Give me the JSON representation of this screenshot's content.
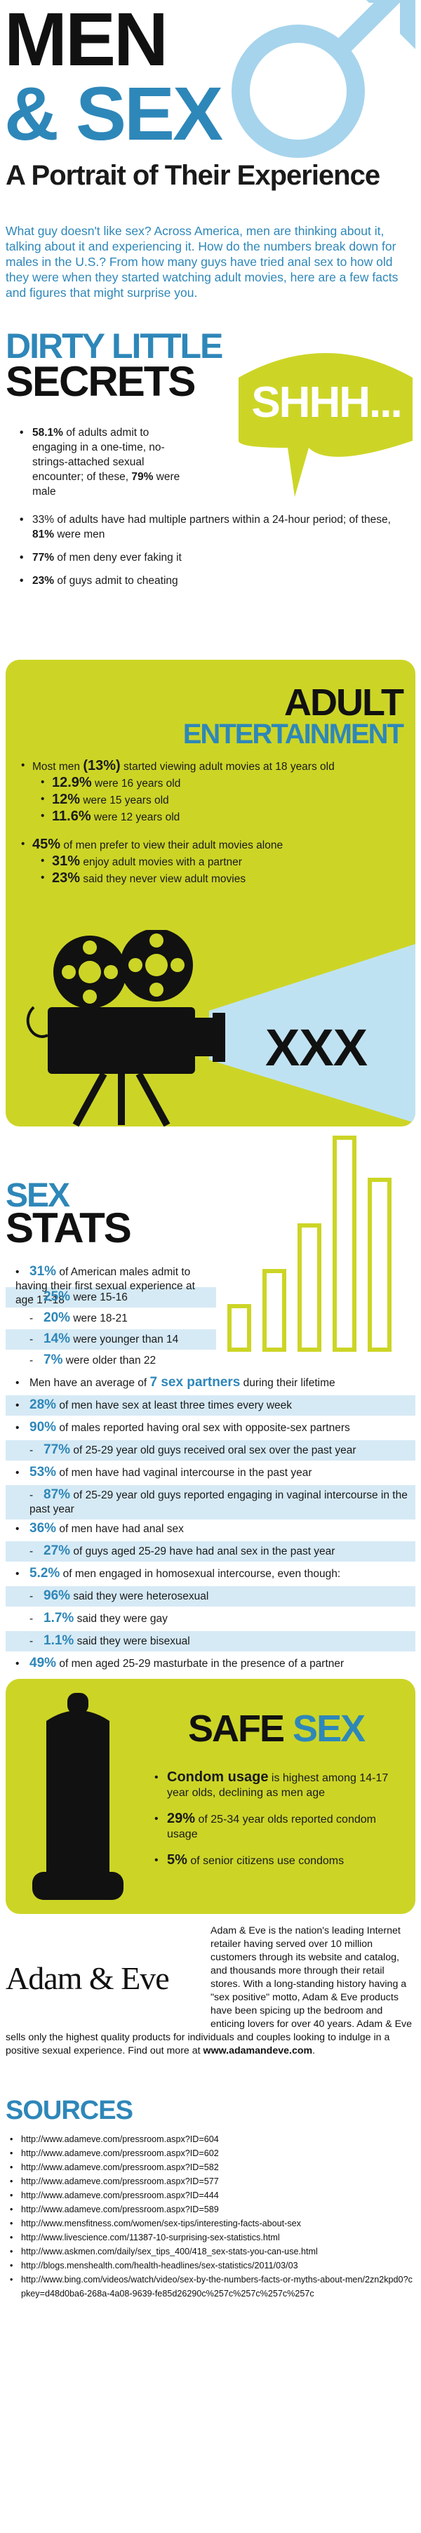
{
  "header": {
    "title_line1": "MEN",
    "title_line2": "& SEX",
    "subtitle": "A Portrait of Their Experience",
    "intro": "What guy doesn't like sex? Across America, men are thinking about it, talking about it and experiencing it. How do the numbers break down for males in the U.S.? From how many guys have tried anal sex to how old they were when they started watching adult movies, here are a few facts and figures that might surprise you.",
    "icon": "male-symbol-icon"
  },
  "colors": {
    "blue": "#2e87b9",
    "lime": "#ccd526",
    "light_blue": "#d6eaf5",
    "dark": "#111111"
  },
  "dirty": {
    "heading1": "DIRTY LITTLE",
    "heading2": "SECRETS",
    "bubble": "SHHH...",
    "item1": {
      "pct": "58.1%",
      "text_a": " of adults admit to engaging in a one-time, no-strings-attached sexual encounter; of these, ",
      "pct2": "79%",
      "text_b": " were male"
    },
    "item2": {
      "text_a": "33% of adults have had multiple partners within a 24-hour period; of these, ",
      "pct": "81%",
      "text_b": " were men"
    },
    "item3": {
      "pct": "77%",
      "text": " of men deny ever faking it"
    },
    "item4": {
      "pct": "23%",
      "text": " of guys admit to cheating"
    }
  },
  "adult": {
    "heading1": "ADULT",
    "heading2": "ENTERTAINMENT",
    "items": {
      "main1_a": "Most men ",
      "main1_pct": "(13%)",
      "main1_b": " started viewing adult movies at 18 years old",
      "s1_pct": "12.9%",
      "s1_text": " were 16 years old",
      "s2_pct": "12%",
      "s2_text": " were 15 years old",
      "s3_pct": "11.6%",
      "s3_text": " were 12 years old",
      "main2_pct": "45%",
      "main2_text": " of men prefer to view their adult movies alone",
      "s4_pct": "31%",
      "s4_text": " enjoy adult movies with a partner",
      "s5_pct": "23%",
      "s5_text": " said they never view adult movies"
    },
    "xxx": "XXX",
    "icon": "film-projector-icon"
  },
  "stats": {
    "heading1": "SEX",
    "heading2": "STATS",
    "rows": [
      {
        "mark": "•",
        "pct": "31%",
        "text": " of American males admit to having their first sexual experience at age 17-18"
      },
      {
        "mark": "-",
        "pct": "25%",
        "text": " were 15-16"
      },
      {
        "mark": "-",
        "pct": "20%",
        "text": " were 18-21"
      },
      {
        "mark": "-",
        "pct": "14%",
        "text": " were younger than 14"
      },
      {
        "mark": "-",
        "pct": "7%",
        "text": " were older than 22"
      },
      {
        "mark": "•",
        "text_a": "Men have an average of ",
        "pct": "7 sex partners",
        "text": " during their lifetime"
      },
      {
        "mark": "•",
        "pct": "28%",
        "text": " of men have sex at least three times every week"
      },
      {
        "mark": "•",
        "pct": "90%",
        "text": " of males reported having oral sex with opposite-sex partners"
      },
      {
        "mark": "-",
        "pct": "77%",
        "text": " of 25-29 year old guys received oral sex over the past year"
      },
      {
        "mark": "•",
        "pct": "53%",
        "text": " of men have had vaginal intercourse in the past year"
      },
      {
        "mark": "-",
        "pct": "87%",
        "text": " of 25-29 year old guys reported engaging in vaginal intercourse in the past year"
      },
      {
        "mark": "•",
        "pct": "36%",
        "text": " of men have had anal sex"
      },
      {
        "mark": "-",
        "pct": "27%",
        "text": " of guys aged 25-29 have had anal sex in the past year"
      },
      {
        "mark": "•",
        "pct": "5.2%",
        "text": " of men engaged in homosexual intercourse, even though:"
      },
      {
        "mark": "-",
        "pct": "96%",
        "text": " said they were heterosexual"
      },
      {
        "mark": "-",
        "pct": "1.7%",
        "text": " said they were gay"
      },
      {
        "mark": "-",
        "pct": "1.1%",
        "text": " said they were bisexual"
      },
      {
        "mark": "•",
        "pct": "49%",
        "text": " of men aged 25-29 masturbate in the presence of a partner"
      }
    ]
  },
  "safe": {
    "heading_w1": "SAFE",
    "heading_w2": "SEX",
    "item1_a": "Condom usage",
    "item1_b": " is highest among 14-17 year olds, declining as men age",
    "item2_pct": "29%",
    "item2_text": " of 25-34 year olds reported condom usage",
    "item3_pct": "5%",
    "item3_text": " of senior citizens use condoms",
    "icon": "condom-icon"
  },
  "adam_eve": {
    "logo": "Adam & Eve",
    "text": "Adam & Eve is the nation's leading Internet retailer having served over 10 million customers through its website and catalog, and thousands more through their retail stores. With a long-standing history having a \"sex positive\" motto, Adam & Eve products have been spicing up the bedroom and enticing lovers for over 40 years. Adam & Eve sells only the highest quality products for individuals and couples looking to indulge in a positive sexual experience. Find out more at ",
    "link": "www.adamandeve.com",
    "end": "."
  },
  "sources": {
    "heading": "SOURCES",
    "items": [
      "http://www.adameve.com/pressroom.aspx?ID=604",
      "http://www.adameve.com/pressroom.aspx?ID=602",
      "http://www.adameve.com/pressroom.aspx?ID=582",
      "http://www.adameve.com/pressroom.aspx?ID=577",
      "http://www.adameve.com/pressroom.aspx?ID=444",
      "http://www.adameve.com/pressroom.aspx?ID=589",
      "http://www.mensfitness.com/women/sex-tips/interesting-facts-about-sex",
      "http://www.livescience.com/11387-10-surprising-sex-statistics.html",
      "http://www.askmen.com/daily/sex_tips_400/418_sex-stats-you-can-use.html",
      "http://blogs.menshealth.com/health-headlines/sex-statistics/2011/03/03",
      "http://www.bing.com/videos/watch/video/sex-by-the-numbers-facts-or-myths-about-men/2zn2kpd0?cpkey=d48d0ba6-268a-4a08-9639-fe85d26290c%257c%257c%257c%257c"
    ]
  }
}
